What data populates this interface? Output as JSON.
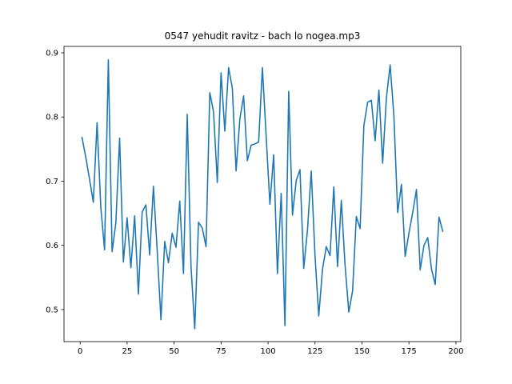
{
  "chart_data": {
    "type": "line",
    "title": "0547 yehudit ravitz - bach lo nogea.mp3",
    "xlabel": "",
    "ylabel": "",
    "xlim": [
      -8.6,
      202.6
    ],
    "ylim": [
      0.45,
      0.91
    ],
    "xticks": [
      0,
      25,
      50,
      75,
      100,
      125,
      150,
      175,
      200
    ],
    "yticks": [
      0.5,
      0.6,
      0.7,
      0.8,
      0.9
    ],
    "grid": false,
    "legend": "none",
    "series_color": "#1f77b4",
    "x": [
      1,
      3,
      5,
      7,
      9,
      11,
      13,
      15,
      17,
      19,
      21,
      23,
      25,
      27,
      29,
      31,
      33,
      35,
      37,
      39,
      41,
      43,
      45,
      47,
      49,
      51,
      53,
      55,
      57,
      59,
      61,
      63,
      65,
      67,
      69,
      71,
      73,
      75,
      77,
      79,
      81,
      83,
      85,
      87,
      89,
      91,
      93,
      95,
      97,
      99,
      101,
      103,
      105,
      107,
      109,
      111,
      113,
      115,
      117,
      119,
      121,
      123,
      125,
      127,
      129,
      131,
      133,
      135,
      137,
      139,
      141,
      143,
      145,
      147,
      149,
      151,
      153,
      155,
      157,
      159,
      161,
      163,
      165,
      167,
      169,
      171,
      173,
      175,
      177,
      179,
      181,
      183,
      185,
      187,
      189,
      191,
      193
    ],
    "series": [
      {
        "values": [
          0.768,
          0.737,
          0.703,
          0.667,
          0.791,
          0.659,
          0.593,
          0.889,
          0.59,
          0.635,
          0.767,
          0.574,
          0.643,
          0.565,
          0.646,
          0.524,
          0.652,
          0.663,
          0.585,
          0.692,
          0.592,
          0.484,
          0.606,
          0.573,
          0.619,
          0.597,
          0.669,
          0.556,
          0.804,
          0.567,
          0.47,
          0.636,
          0.627,
          0.598,
          0.838,
          0.808,
          0.698,
          0.869,
          0.778,
          0.877,
          0.845,
          0.716,
          0.797,
          0.833,
          0.732,
          0.756,
          0.758,
          0.761,
          0.877,
          0.77,
          0.664,
          0.741,
          0.556,
          0.681,
          0.475,
          0.84,
          0.647,
          0.701,
          0.718,
          0.564,
          0.624,
          0.716,
          0.584,
          0.49,
          0.563,
          0.598,
          0.584,
          0.691,
          0.567,
          0.67,
          0.569,
          0.496,
          0.529,
          0.645,
          0.626,
          0.786,
          0.823,
          0.826,
          0.763,
          0.842,
          0.728,
          0.83,
          0.881,
          0.801,
          0.651,
          0.695,
          0.583,
          0.619,
          0.651,
          0.687,
          0.562,
          0.6,
          0.612,
          0.563,
          0.539,
          0.644,
          0.622
        ]
      }
    ]
  }
}
